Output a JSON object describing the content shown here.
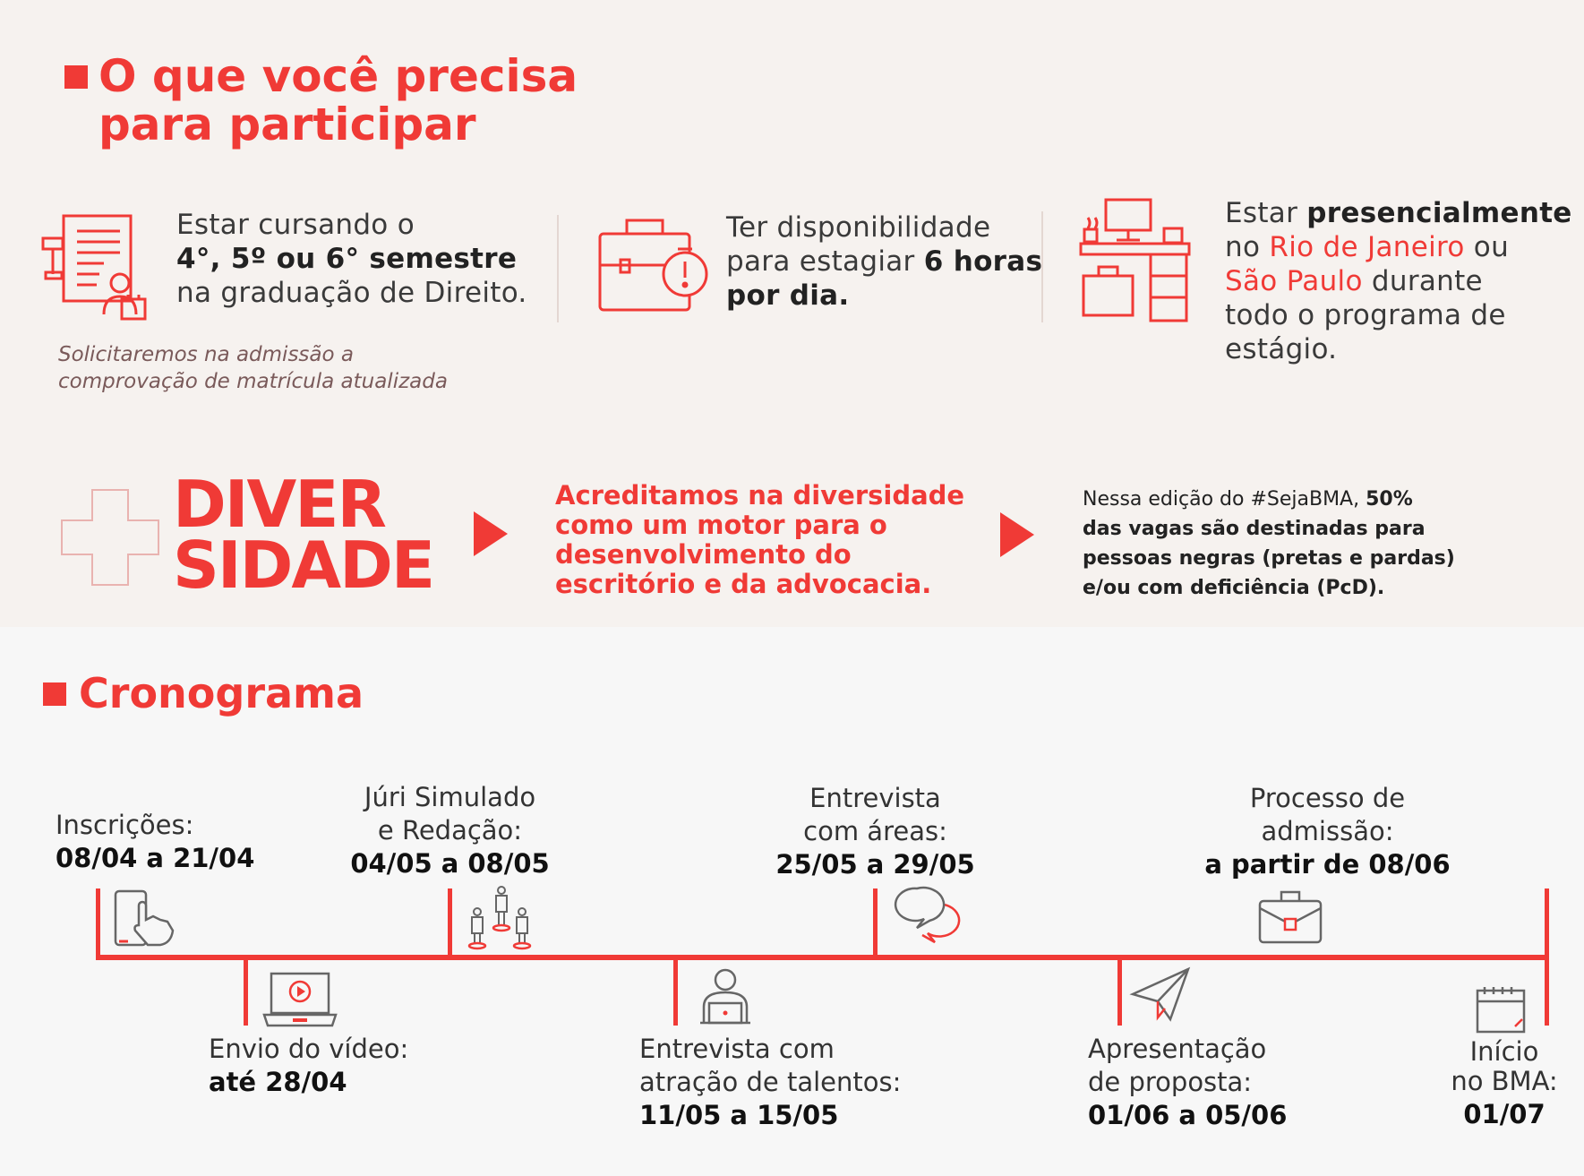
{
  "requirements": {
    "title_line1": "O que você precisa",
    "title_line2": "para participar",
    "items": [
      {
        "line1": "Estar cursando o",
        "line2_bold": "4°, 5º ou 6° semestre",
        "line3": "na graduação de Direito.",
        "note_line1": "Solicitaremos na admissão a",
        "note_line2": "comprovação de matrícula atualizada"
      },
      {
        "line1": "Ter disponibilidade",
        "line2_a": "para estagiar ",
        "line2_bold": "6 horas",
        "line3_bold": "por dia."
      },
      {
        "line1_a": "Estar ",
        "line1_bold": "presencialmente",
        "line2_a": "no ",
        "line2_red": "Rio de Janeiro",
        "line2_b": " ou",
        "line3_red": "São Paulo",
        "line3_b": " durante",
        "line4": "todo o programa de",
        "line5": "estágio."
      }
    ]
  },
  "diversity": {
    "big_line1": "DIVER",
    "big_line2": "SIDADE",
    "middle": [
      "Acreditamos na diversidade",
      "como um motor para o",
      "desenvolvimento do",
      "escritório e da advocacia."
    ],
    "right_l1_a": "Nessa edição do #SejaBMA, ",
    "right_l1_b": "50%",
    "right_l2": "das vagas são destinadas para",
    "right_l3": "pessoas negras (pretas e pardas)",
    "right_l4": "e/ou com deficiência (PcD)."
  },
  "schedule": {
    "title": "Cronograma",
    "events": [
      {
        "label": [
          "Inscrições:"
        ],
        "date": "08/04 a 21/04",
        "icon": "touch-phone-icon"
      },
      {
        "label": [
          "Envio do vídeo:"
        ],
        "date": "até 28/04",
        "icon": "laptop-video-icon"
      },
      {
        "label": [
          "Júri Simulado",
          "e Redação:"
        ],
        "date": "04/05 a 08/05",
        "icon": "people-icon"
      },
      {
        "label": [
          "Entrevista com",
          "atração de talentos:"
        ],
        "date": "11/05 a 15/05",
        "icon": "person-laptop-icon"
      },
      {
        "label": [
          "Entrevista",
          "com áreas:"
        ],
        "date": "25/05 a 29/05",
        "icon": "speech-bubbles-icon"
      },
      {
        "label": [
          "Apresentação",
          "de proposta:"
        ],
        "date": "01/06 a 05/06",
        "icon": "paper-plane-icon"
      },
      {
        "label": [
          "Processo de",
          "admissão:"
        ],
        "date": "a partir de 08/06",
        "icon": "briefcase-icon"
      },
      {
        "label": [
          "Início",
          "no BMA:"
        ],
        "date": "01/07",
        "icon": "calendar-icon"
      }
    ]
  },
  "colors": {
    "accent": "#f03a36",
    "background_top": "#f6f2ef",
    "background_bottom": "#f7f7f7"
  }
}
